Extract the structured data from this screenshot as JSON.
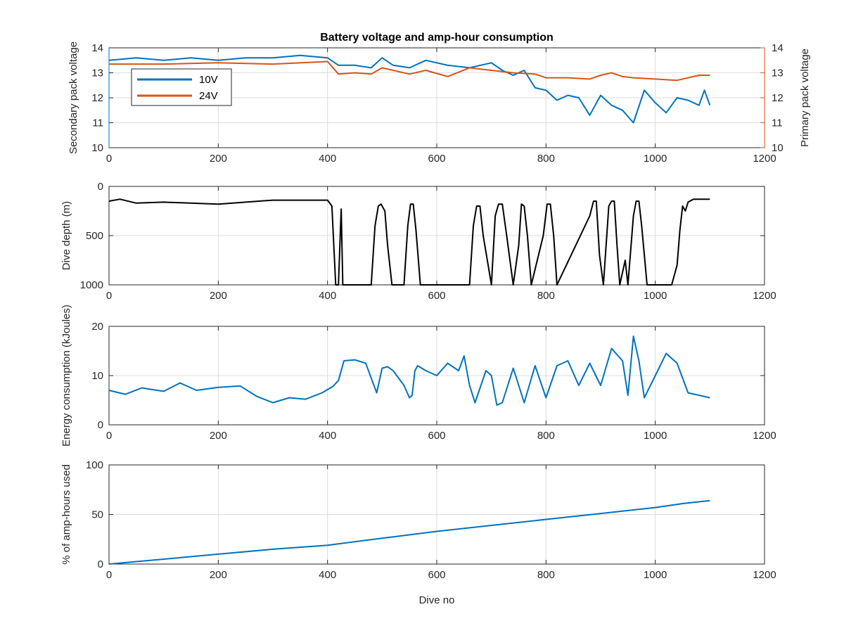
{
  "figure": {
    "title": "Battery voltage and amp-hour consumption"
  },
  "chart_data": [
    {
      "type": "line",
      "title": "Battery voltage and amp-hour consumption",
      "xlabel": "",
      "ylabel": "Secondary pack voltage",
      "ylabel_right": "Primary pack voltage",
      "xlim": [
        0,
        1200
      ],
      "ylim": [
        10,
        14
      ],
      "ylim_right": [
        10,
        14
      ],
      "xticks": [
        "0",
        "200",
        "400",
        "600",
        "800",
        "1000",
        "1200"
      ],
      "yticks": [
        "10",
        "11",
        "12",
        "13",
        "14"
      ],
      "yticks_right": [
        "10",
        "11",
        "12",
        "13",
        "14"
      ],
      "grid": true,
      "legend": {
        "placement": "top-left",
        "entries": [
          "10V",
          "24V"
        ]
      },
      "series": [
        {
          "name": "10V",
          "color": "#0072BD",
          "x": [
            0,
            50,
            100,
            150,
            200,
            250,
            300,
            350,
            400,
            420,
            450,
            480,
            500,
            520,
            550,
            580,
            620,
            660,
            700,
            720,
            740,
            760,
            780,
            800,
            820,
            840,
            860,
            880,
            900,
            920,
            940,
            960,
            980,
            1000,
            1020,
            1040,
            1060,
            1080,
            1090,
            1100
          ],
          "y": [
            13.5,
            13.6,
            13.5,
            13.6,
            13.5,
            13.6,
            13.6,
            13.7,
            13.6,
            13.3,
            13.3,
            13.2,
            13.6,
            13.3,
            13.2,
            13.5,
            13.3,
            13.2,
            13.4,
            13.1,
            12.9,
            13.1,
            12.4,
            12.3,
            11.9,
            12.1,
            12.0,
            11.3,
            12.1,
            11.7,
            11.5,
            11.0,
            12.3,
            11.8,
            11.4,
            12.0,
            11.9,
            11.7,
            12.3,
            11.7
          ]
        },
        {
          "name": "24V",
          "color": "#D95319",
          "x": [
            0,
            100,
            200,
            300,
            400,
            420,
            450,
            480,
            500,
            550,
            580,
            620,
            660,
            700,
            740,
            780,
            800,
            840,
            880,
            900,
            920,
            940,
            960,
            1000,
            1040,
            1060,
            1080,
            1100
          ],
          "y": [
            13.35,
            13.35,
            13.4,
            13.35,
            13.45,
            12.95,
            13.0,
            12.95,
            13.2,
            12.95,
            13.1,
            12.85,
            13.2,
            13.1,
            13.0,
            12.95,
            12.8,
            12.8,
            12.75,
            12.9,
            13.0,
            12.85,
            12.8,
            12.75,
            12.7,
            12.8,
            12.9,
            12.9
          ]
        }
      ]
    },
    {
      "type": "line",
      "title": "",
      "xlabel": "",
      "ylabel": "Dive depth (m)",
      "xlim": [
        0,
        1200
      ],
      "ylim": [
        1000,
        0
      ],
      "xticks": [
        "0",
        "200",
        "400",
        "600",
        "800",
        "1000",
        "1200"
      ],
      "yticks": [
        "0",
        "500",
        "1000"
      ],
      "grid": true,
      "series": [
        {
          "color": "#000000",
          "x": [
            0,
            20,
            50,
            100,
            200,
            300,
            400,
            408,
            415,
            418,
            420,
            425,
            428,
            432,
            435,
            440,
            480,
            487,
            493,
            498,
            505,
            510,
            518,
            540,
            547,
            552,
            557,
            562,
            570,
            660,
            667,
            673,
            679,
            685,
            700,
            707,
            713,
            720,
            728,
            740,
            750,
            755,
            760,
            766,
            773,
            795,
            802,
            808,
            814,
            820,
            880,
            887,
            892,
            898,
            905,
            915,
            920,
            925,
            930,
            935,
            945,
            950,
            960,
            965,
            970,
            975,
            985,
            990,
            995,
            1000,
            1010,
            1030,
            1040,
            1045,
            1050,
            1055,
            1060,
            1070,
            1100
          ],
          "y": [
            150,
            130,
            170,
            160,
            180,
            140,
            140,
            200,
            1000,
            1000,
            1000,
            230,
            1000,
            1000,
            1000,
            1000,
            1000,
            400,
            200,
            180,
            250,
            600,
            1000,
            1000,
            400,
            180,
            180,
            450,
            1000,
            1000,
            400,
            200,
            200,
            500,
            1000,
            300,
            180,
            180,
            500,
            1000,
            600,
            180,
            200,
            500,
            1000,
            500,
            180,
            180,
            500,
            1000,
            300,
            150,
            150,
            700,
            1000,
            200,
            150,
            150,
            600,
            1000,
            750,
            1000,
            300,
            150,
            150,
            400,
            1000,
            1000,
            1000,
            1000,
            1000,
            1000,
            800,
            450,
            200,
            250,
            160,
            130,
            130
          ]
        }
      ]
    },
    {
      "type": "line",
      "title": "",
      "xlabel": "",
      "ylabel": "Energy consumption (kJoules)",
      "xlim": [
        0,
        1200
      ],
      "ylim": [
        0,
        20
      ],
      "xticks": [
        "0",
        "200",
        "400",
        "600",
        "800",
        "1000",
        "1200"
      ],
      "yticks": [
        "0",
        "10",
        "20"
      ],
      "grid": true,
      "series": [
        {
          "color": "#0072BD",
          "x": [
            0,
            30,
            60,
            100,
            130,
            160,
            200,
            240,
            270,
            300,
            330,
            360,
            390,
            410,
            420,
            430,
            450,
            470,
            480,
            490,
            500,
            510,
            520,
            540,
            550,
            555,
            560,
            565,
            580,
            600,
            620,
            640,
            650,
            660,
            670,
            690,
            700,
            710,
            720,
            740,
            760,
            780,
            800,
            820,
            840,
            860,
            880,
            900,
            920,
            940,
            950,
            960,
            970,
            980,
            1000,
            1020,
            1040,
            1060,
            1080,
            1100
          ],
          "y": [
            7.0,
            6.2,
            7.5,
            6.8,
            8.5,
            7.0,
            7.6,
            7.9,
            5.8,
            4.5,
            5.5,
            5.2,
            6.5,
            7.8,
            9.0,
            13.0,
            13.2,
            12.5,
            9.5,
            6.5,
            11.5,
            11.8,
            11.0,
            8.0,
            5.5,
            6.0,
            11.0,
            12.0,
            11.0,
            10.0,
            12.5,
            11.0,
            14.0,
            8.0,
            4.5,
            11.0,
            10.0,
            4.0,
            4.5,
            11.5,
            4.5,
            12.0,
            5.5,
            12.0,
            13.0,
            8.0,
            12.5,
            8.0,
            15.5,
            13.0,
            6.0,
            18.0,
            13.0,
            5.5,
            10.0,
            14.5,
            12.5,
            6.5,
            6.0,
            5.5
          ]
        }
      ]
    },
    {
      "type": "line",
      "title": "",
      "xlabel": "Dive no",
      "ylabel": "% of amp-hours used",
      "xlim": [
        0,
        1200
      ],
      "ylim": [
        0,
        100
      ],
      "xticks": [
        "0",
        "200",
        "400",
        "600",
        "800",
        "1000",
        "1200"
      ],
      "yticks": [
        "0",
        "50",
        "100"
      ],
      "grid": true,
      "series": [
        {
          "color": "#0072BD",
          "x": [
            0,
            100,
            200,
            300,
            400,
            500,
            600,
            700,
            800,
            900,
            1000,
            1050,
            1100
          ],
          "y": [
            0,
            5,
            10,
            15,
            19,
            26,
            33,
            39,
            45,
            51,
            57,
            61,
            64
          ]
        }
      ]
    }
  ]
}
